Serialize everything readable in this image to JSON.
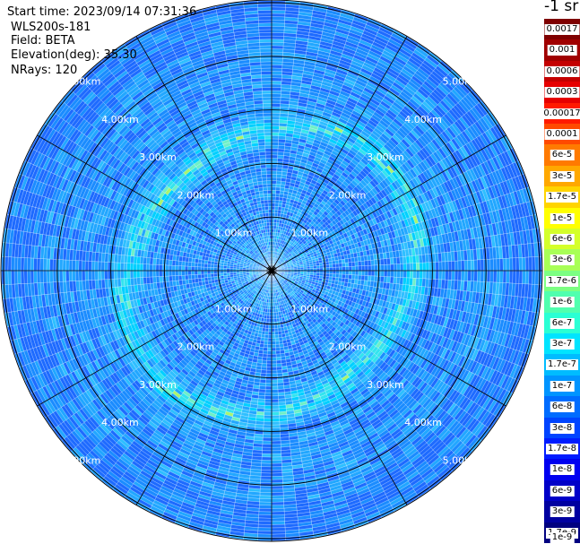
{
  "header": {
    "start_time": "Start time: 2023/09/14 07:31:36",
    "instrument": "WLS200s-181",
    "field": "Field: BETA",
    "elevation": "Elevation(deg): 35.30",
    "nrays": "NRays: 120"
  },
  "colorbar": {
    "unit": "-1 sr",
    "labels": [
      "0.0017",
      "0.001",
      "0.0006",
      "0.0003",
      "0.00017",
      "0.0001",
      "6e-5",
      "3e-5",
      "1.7e-5",
      "1e-5",
      "6e-6",
      "3e-6",
      "1.7e-6",
      "1e-6",
      "6e-7",
      "3e-7",
      "1.7e-7",
      "1e-7",
      "6e-8",
      "3e-8",
      "1.7e-8",
      "1e-8",
      "6e-9",
      "3e-9",
      "1.7e-9",
      "1e-9"
    ],
    "colors": [
      "#7f0000",
      "#a00000",
      "#c40000",
      "#e60000",
      "#ff1a00",
      "#ff4a00",
      "#ff7a00",
      "#ffa800",
      "#ffd400",
      "#ffff00",
      "#d4ff2a",
      "#a8ff56",
      "#7cff82",
      "#50ffae",
      "#2affd4",
      "#00e4ff",
      "#00bcff",
      "#0094ff",
      "#006cff",
      "#0044ff",
      "#001cff",
      "#0000f0",
      "#0000c8",
      "#0000a0",
      "#000080",
      "#000060"
    ]
  },
  "chart_data": {
    "type": "heatmap",
    "projection": "polar (PPI scan)",
    "field": "BETA",
    "unit": "-1 sr",
    "color_scale": "logarithmic",
    "value_range": [
      1e-09,
      0.0017
    ],
    "rays": 120,
    "max_range_km": 5.0,
    "range_rings_km": [
      1.0,
      2.0,
      3.0,
      4.0,
      5.0
    ],
    "range_ring_labels": [
      "1.00km",
      "2.00km",
      "3.00km",
      "4.00km",
      "5.00km"
    ],
    "azimuth_spokes_deg": [
      0,
      30,
      60,
      90,
      120,
      150,
      180,
      210,
      240,
      270,
      300,
      330
    ],
    "enhanced_ring_band_km": [
      2.2,
      3.0
    ],
    "typical_value": "3e-8 to 1e-7",
    "peak_value": "about 1e-6"
  }
}
